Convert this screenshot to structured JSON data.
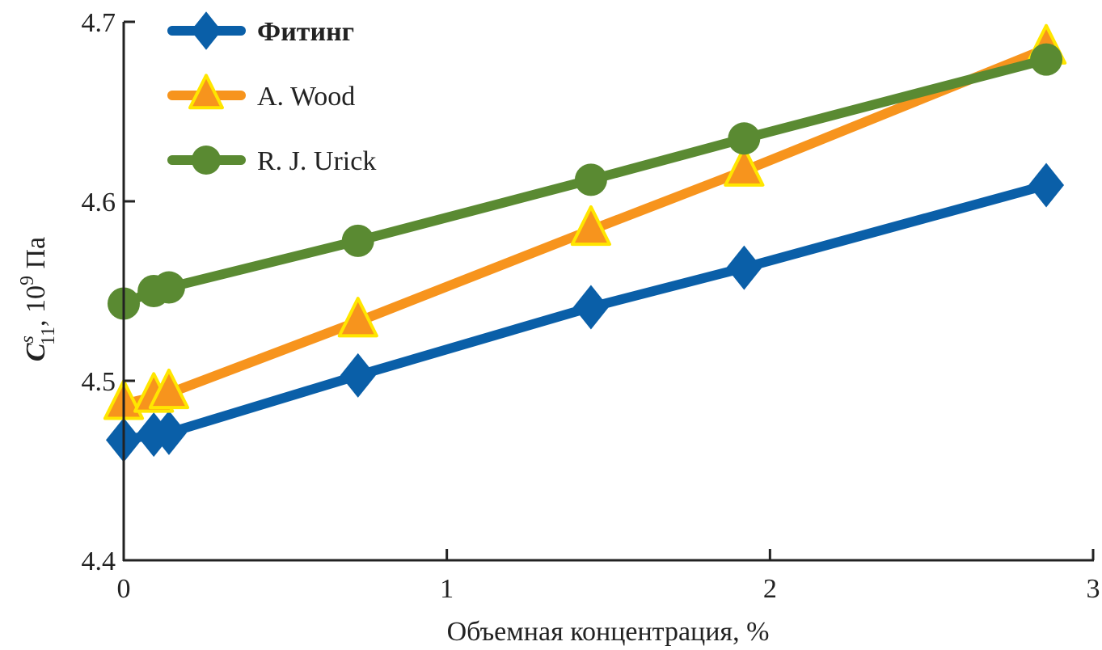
{
  "chart_data": {
    "type": "line",
    "title": "",
    "xlabel": "Объемная концентрация, %",
    "ylabel": {
      "main": "C",
      "superscript": "s",
      "subscript": "11",
      "rest": ", 10",
      "exp": "9",
      "unit": " Па"
    },
    "xlim": [
      0,
      3
    ],
    "ylim": [
      4.4,
      4.7
    ],
    "xticks": [
      "0",
      "1",
      "2",
      "3"
    ],
    "yticks": [
      "4.4",
      "4.5",
      "4.6",
      "4.7"
    ],
    "grid": false,
    "legend_position": "top-left",
    "x": [
      0,
      0.093,
      0.14,
      0.725,
      1.446,
      1.92,
      2.855
    ],
    "series": [
      {
        "name": "Фитинг",
        "marker": "diamond",
        "color": "#0a5fa8",
        "values": [
          4.467,
          4.47,
          4.471,
          4.503,
          4.541,
          4.563,
          4.609
        ]
      },
      {
        "name": "A. Wood",
        "marker": "triangle",
        "color": "#f7941d",
        "edge": "#ffe600",
        "values": [
          4.487,
          4.491,
          4.493,
          4.533,
          4.584,
          4.617,
          4.685
        ]
      },
      {
        "name": "R. J. Urick",
        "marker": "circle",
        "color": "#5a8a32",
        "values": [
          4.543,
          4.55,
          4.552,
          4.578,
          4.612,
          4.635,
          4.679
        ]
      }
    ]
  }
}
